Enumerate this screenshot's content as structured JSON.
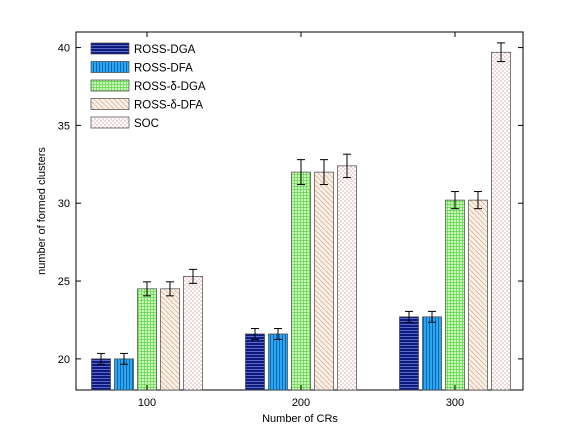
{
  "chart_data": {
    "type": "bar",
    "xlabel": "Number of CRs",
    "ylabel": "number of formed clusters",
    "categories": [
      "100",
      "200",
      "300"
    ],
    "ylim": [
      18,
      41
    ],
    "yticks": [
      20,
      25,
      30,
      35,
      40
    ],
    "grid": false,
    "legend_position": "top-left",
    "series": [
      {
        "name": "ROSS-DGA",
        "values": [
          20.0,
          21.6,
          22.7
        ],
        "errors": [
          0.35,
          0.35,
          0.35
        ],
        "color": "#1a237e",
        "pattern": "hlines-dense"
      },
      {
        "name": "ROSS-DFA",
        "values": [
          20.0,
          21.6,
          22.7
        ],
        "errors": [
          0.35,
          0.35,
          0.35
        ],
        "color": "#29b6f6",
        "pattern": "vlines"
      },
      {
        "name": "ROSS-δ-DGA",
        "values": [
          24.5,
          32.0,
          30.2
        ],
        "errors": [
          0.45,
          0.8,
          0.55
        ],
        "color": "#b9f6a0",
        "pattern": "grid"
      },
      {
        "name": "ROSS-δ-DFA",
        "values": [
          24.5,
          32.0,
          30.2
        ],
        "errors": [
          0.45,
          0.8,
          0.55
        ],
        "color": "#f6e6d6",
        "pattern": "diag"
      },
      {
        "name": "SOC",
        "values": [
          25.3,
          32.4,
          39.7
        ],
        "errors": [
          0.45,
          0.75,
          0.6
        ],
        "color": "#ffffff",
        "pattern": "dots"
      }
    ]
  }
}
